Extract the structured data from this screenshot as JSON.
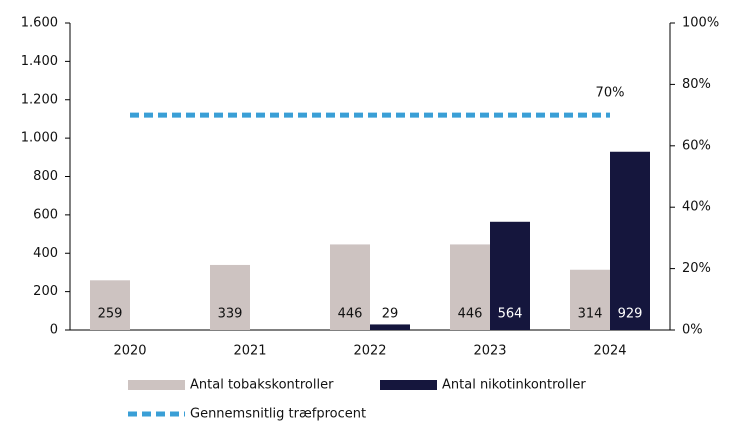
{
  "chart_data": {
    "type": "bar",
    "categories": [
      "2020",
      "2021",
      "2022",
      "2023",
      "2024"
    ],
    "series": [
      {
        "name": "Antal tobakskontroller",
        "color": "#cdc3c1",
        "values": [
          259,
          339,
          446,
          446,
          314
        ]
      },
      {
        "name": "Antal nikotinkontroller",
        "color": "#15163d",
        "values": [
          null,
          null,
          29,
          564,
          929
        ]
      },
      {
        "name": "Gennemsnitlig træfprocent",
        "color": "#3a9fd6",
        "type": "line",
        "axis": "y2",
        "values": [
          70,
          70,
          70,
          70,
          70
        ],
        "value_labels": [
          null,
          null,
          null,
          null,
          "70%"
        ]
      }
    ],
    "ylim": [
      0,
      1600
    ],
    "yticks": [
      0,
      200,
      400,
      600,
      800,
      {
        "value": 1000,
        "label": "1.000"
      },
      {
        "value": 1200,
        "label": "1.200"
      },
      {
        "value": 1400,
        "label": "1.400"
      },
      {
        "value": 1600,
        "label": "1.600"
      }
    ],
    "y2lim": [
      0,
      100
    ],
    "y2ticks": [
      {
        "value": 0,
        "label": "0%"
      },
      {
        "value": 20,
        "label": "20%"
      },
      {
        "value": 40,
        "label": "40%"
      },
      {
        "value": 60,
        "label": "60%"
      },
      {
        "value": 80,
        "label": "80%"
      },
      {
        "value": 100,
        "label": "100%"
      }
    ],
    "legend": "bottom"
  }
}
